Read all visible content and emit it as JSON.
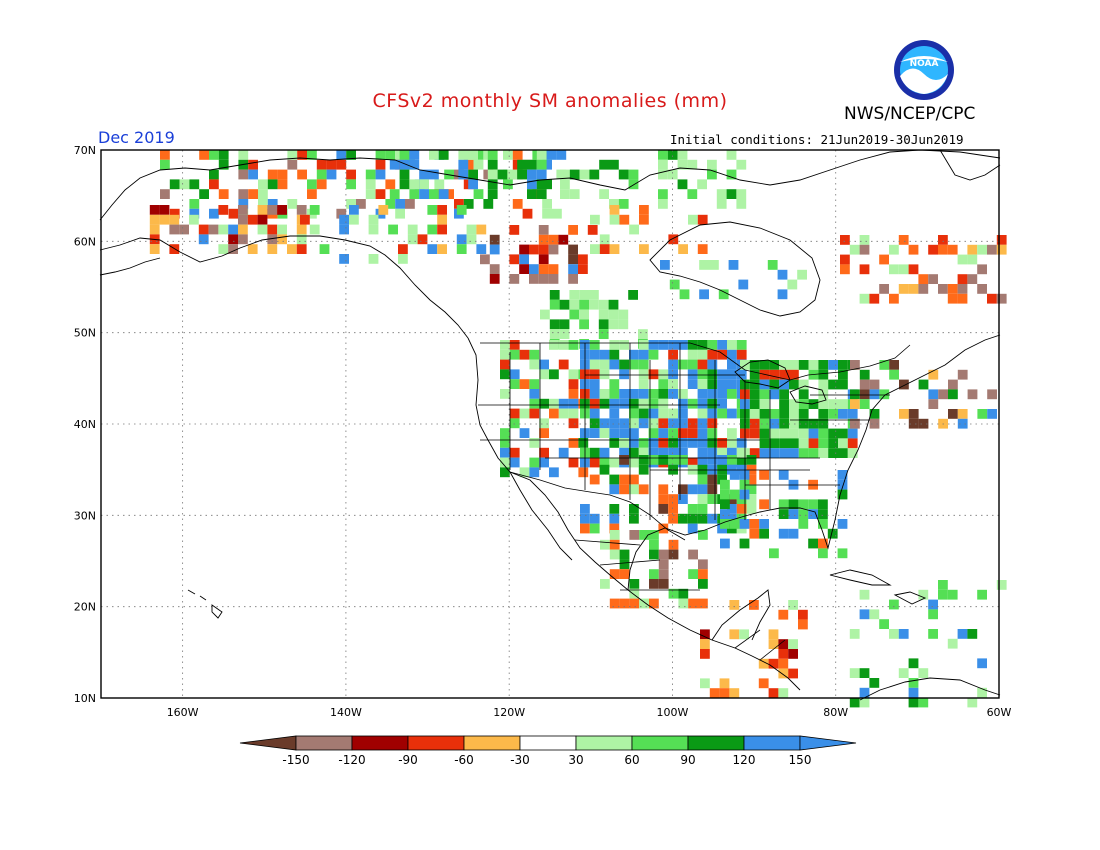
{
  "header": {
    "title": "CFSv2 monthly SM anomalies (mm)",
    "valid_month": "Dec 2019",
    "agency": "NWS/NCEP/CPC",
    "initial_conditions": "Initial conditions: 21Jun2019-30Jun2019"
  },
  "logo": {
    "name": "noaa-logo",
    "text": "NOAA"
  },
  "map": {
    "lat_labels": [
      "70N",
      "60N",
      "50N",
      "40N",
      "30N",
      "20N",
      "10N"
    ],
    "lon_labels": [
      "160W",
      "140W",
      "120W",
      "100W",
      "80W",
      "60W"
    ],
    "lat_range": [
      10,
      70
    ],
    "lon_range": [
      -170,
      -60
    ],
    "grid_lines": "dotted"
  },
  "colorbar": {
    "labels": [
      "-150",
      "-120",
      "-90",
      "-60",
      "-30",
      "30",
      "60",
      "90",
      "120",
      "150"
    ],
    "colors": [
      "#6a3b2a",
      "#a47a72",
      "#a00000",
      "#e8300a",
      "#ff6a1a",
      "#fcb94a",
      "#ffffff",
      "#aef3a5",
      "#55df55",
      "#0a9a15",
      "#3a8fe8",
      "#3a8fe8"
    ]
  }
}
